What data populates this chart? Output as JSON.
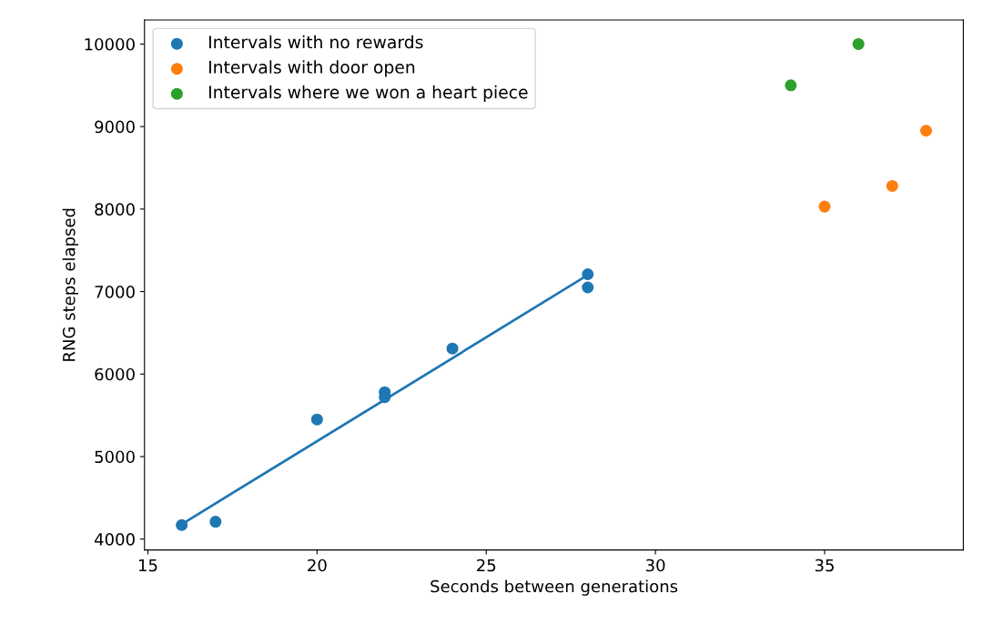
{
  "chart_data": {
    "type": "scatter",
    "xlabel": "Seconds between generations",
    "ylabel": "RNG steps elapsed",
    "xlim": [
      14.9,
      39.1
    ],
    "xticks": [
      15,
      20,
      25,
      30,
      35
    ],
    "ylim": [
      3868,
      10292
    ],
    "yticks": [
      4000,
      5000,
      6000,
      7000,
      8000,
      9000,
      10000
    ],
    "legend": "top left",
    "grid": false,
    "marker": "circle",
    "series": [
      {
        "name": "Intervals with no rewards",
        "color": "#1f77b4",
        "x": [
          16,
          17,
          20,
          22,
          22,
          24,
          28,
          28
        ],
        "values": [
          4170,
          4210,
          5450,
          5780,
          5720,
          6310,
          7210,
          7050
        ]
      },
      {
        "name": "Intervals with door open",
        "color": "#ff7f0e",
        "x": [
          35,
          37,
          38
        ],
        "values": [
          8030,
          8280,
          8950
        ]
      },
      {
        "name": "Intervals where we won a heart piece",
        "color": "#2ca02c",
        "x": [
          34,
          36
        ],
        "values": [
          9500,
          10000
        ]
      },
      {
        "type": "line",
        "marker": "none",
        "color": "#1f77b4",
        "x": [
          16,
          28
        ],
        "values": [
          4180,
          7200
        ]
      }
    ]
  }
}
